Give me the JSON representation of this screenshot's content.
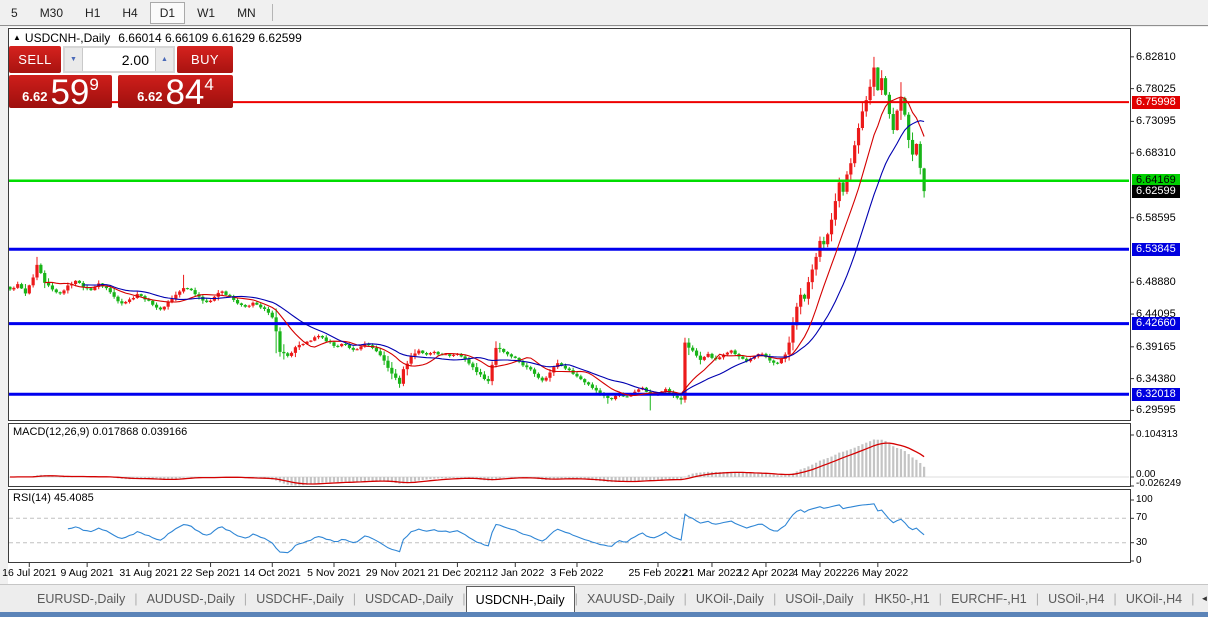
{
  "toolbar": {
    "timeframes": [
      "5",
      "M30",
      "H1",
      "H4",
      "D1",
      "W1",
      "MN"
    ],
    "active": "D1"
  },
  "chart": {
    "title_arrow": "▲",
    "symbol": "USDCNH-,Daily",
    "ohlc": "6.66014 6.66109 6.61629 6.62599",
    "trade_panel": {
      "sell_label": "SELL",
      "buy_label": "BUY",
      "volume": "2.00",
      "spinner_down_icon": "▼",
      "spinner_up_icon": "▲",
      "sell_price_prefix": "6.62",
      "sell_price_big": "59",
      "sell_price_sup": "9",
      "buy_price_prefix": "6.62",
      "buy_price_big": "84",
      "buy_price_sup": "4"
    }
  },
  "price_axis": {
    "ticks": [
      "6.82810",
      "6.78025",
      "6.73095",
      "6.68310",
      "6.58595",
      "6.48880",
      "6.44095",
      "6.39165",
      "6.34380",
      "6.29595"
    ],
    "line_labels": [
      {
        "value": "6.75998",
        "price": 6.75998,
        "bg": "#e00000",
        "fg": "#ffffff"
      },
      {
        "value": "6.64169",
        "price": 6.64169,
        "bg": "#00d000",
        "fg": "#000000"
      },
      {
        "value": "6.62599",
        "price": 6.62599,
        "bg": "#000000",
        "fg": "#ffffff"
      },
      {
        "value": "6.53845",
        "price": 6.53845,
        "bg": "#0000e0",
        "fg": "#ffffff"
      },
      {
        "value": "6.42660",
        "price": 6.4266,
        "bg": "#0000e0",
        "fg": "#ffffff"
      },
      {
        "value": "6.32018",
        "price": 6.32018,
        "bg": "#0000e0",
        "fg": "#ffffff"
      }
    ]
  },
  "macd": {
    "header": "MACD(12,26,9) 0.017868 0.039166",
    "axis": [
      "0.104313",
      "0.00",
      "-0.026249"
    ]
  },
  "rsi": {
    "header": "RSI(14) 45.4085",
    "axis": [
      "100",
      "70",
      "30",
      "0"
    ]
  },
  "date_axis": [
    {
      "i": 5,
      "label": "16 Jul 2021"
    },
    {
      "i": 20,
      "label": "9 Aug 2021"
    },
    {
      "i": 36,
      "label": "31 Aug 2021"
    },
    {
      "i": 52,
      "label": "22 Sep 2021"
    },
    {
      "i": 68,
      "label": "14 Oct 2021"
    },
    {
      "i": 84,
      "label": "5 Nov 2021"
    },
    {
      "i": 100,
      "label": "29 Nov 2021"
    },
    {
      "i": 116,
      "label": "21 Dec 2021"
    },
    {
      "i": 131,
      "label": "12 Jan 2022"
    },
    {
      "i": 147,
      "label": "3 Feb 2022"
    },
    {
      "i": 168,
      "label": "25 Feb 2022"
    },
    {
      "i": 182,
      "label": "21 Mar 2022"
    },
    {
      "i": 196,
      "label": "12 Apr 2022"
    },
    {
      "i": 210,
      "label": "4 May 2022"
    },
    {
      "i": 225,
      "label": "26 May 2022"
    }
  ],
  "tabs": {
    "items": [
      "EURUSD-,Daily",
      "AUDUSD-,Daily",
      "USDCHF-,Daily",
      "USDCAD-,Daily",
      "USDCNH-,Daily",
      "XAUUSD-,Daily",
      "UKOil-,Daily",
      "USOil-,Daily",
      "HK50-,H1",
      "EURCHF-,H1",
      "USOil-,H4",
      "UKOil-,H4"
    ],
    "active_index": 4,
    "separator": "|",
    "nav_left": "◄",
    "nav_right": "►"
  },
  "chart_data": {
    "type": "candlestick",
    "symbol": "USDCNH",
    "period": "Daily",
    "last_ohlc": {
      "open": 6.66014,
      "high": 6.66109,
      "low": 6.61629,
      "close": 6.62599
    },
    "price_range": [
      6.28,
      6.87
    ],
    "bars": 238,
    "up_color": "#ec1a1a",
    "down_color": "#18b418",
    "ma_fast_period": 10,
    "ma_slow_period": 20,
    "ma_fast_color": "#d40000",
    "ma_slow_color": "#0000b0",
    "macd_params": [
      12,
      26,
      9
    ],
    "macd_last": [
      0.017868,
      0.039166
    ],
    "macd_range": [
      -0.026249,
      0.104313
    ],
    "macd_bar_color": "#c4c4c4",
    "macd_signal_color": "#d40000",
    "rsi_period": 14,
    "rsi_last": 45.4085,
    "rsi_levels": [
      70,
      30
    ],
    "rsi_color": "#2f86d5",
    "hlines": [
      {
        "price": 6.75998,
        "color": "#ee0000",
        "width": 2
      },
      {
        "price": 6.64169,
        "color": "#00dd00",
        "width": 2.5
      },
      {
        "price": 6.53845,
        "color": "#0000ee",
        "width": 3
      },
      {
        "price": 6.4266,
        "color": "#0000ee",
        "width": 3
      },
      {
        "price": 6.32018,
        "color": "#0000ee",
        "width": 3
      }
    ],
    "close_anchors": [
      [
        0,
        6.478
      ],
      [
        2,
        6.486
      ],
      [
        4,
        6.472
      ],
      [
        6,
        6.496
      ],
      [
        7,
        6.515
      ],
      [
        9,
        6.488
      ],
      [
        11,
        6.478
      ],
      [
        13,
        6.472
      ],
      [
        15,
        6.484
      ],
      [
        17,
        6.491
      ],
      [
        19,
        6.481
      ],
      [
        21,
        6.477
      ],
      [
        23,
        6.487
      ],
      [
        25,
        6.48
      ],
      [
        27,
        6.467
      ],
      [
        29,
        6.457
      ],
      [
        31,
        6.463
      ],
      [
        33,
        6.471
      ],
      [
        35,
        6.463
      ],
      [
        37,
        6.455
      ],
      [
        39,
        6.448
      ],
      [
        41,
        6.459
      ],
      [
        43,
        6.47
      ],
      [
        45,
        6.48
      ],
      [
        47,
        6.477
      ],
      [
        49,
        6.467
      ],
      [
        51,
        6.459
      ],
      [
        53,
        6.467
      ],
      [
        55,
        6.475
      ],
      [
        57,
        6.468
      ],
      [
        59,
        6.457
      ],
      [
        61,
        6.452
      ],
      [
        63,
        6.458
      ],
      [
        65,
        6.451
      ],
      [
        67,
        6.443
      ],
      [
        68,
        6.436
      ],
      [
        69,
        6.415
      ],
      [
        70,
        6.384
      ],
      [
        72,
        6.378
      ],
      [
        74,
        6.391
      ],
      [
        76,
        6.396
      ],
      [
        78,
        6.401
      ],
      [
        80,
        6.408
      ],
      [
        82,
        6.4
      ],
      [
        84,
        6.393
      ],
      [
        86,
        6.396
      ],
      [
        88,
        6.39
      ],
      [
        90,
        6.388
      ],
      [
        92,
        6.396
      ],
      [
        94,
        6.39
      ],
      [
        96,
        6.379
      ],
      [
        98,
        6.36
      ],
      [
        100,
        6.345
      ],
      [
        101,
        6.336
      ],
      [
        102,
        6.358
      ],
      [
        104,
        6.378
      ],
      [
        106,
        6.386
      ],
      [
        108,
        6.38
      ],
      [
        110,
        6.384
      ],
      [
        112,
        6.38
      ],
      [
        114,
        6.378
      ],
      [
        116,
        6.381
      ],
      [
        118,
        6.373
      ],
      [
        120,
        6.361
      ],
      [
        122,
        6.35
      ],
      [
        124,
        6.34
      ],
      [
        126,
        6.39
      ],
      [
        128,
        6.384
      ],
      [
        130,
        6.377
      ],
      [
        132,
        6.369
      ],
      [
        134,
        6.361
      ],
      [
        136,
        6.351
      ],
      [
        138,
        6.341
      ],
      [
        140,
        6.353
      ],
      [
        142,
        6.367
      ],
      [
        144,
        6.359
      ],
      [
        146,
        6.351
      ],
      [
        148,
        6.343
      ],
      [
        150,
        6.335
      ],
      [
        152,
        6.326
      ],
      [
        154,
        6.318
      ],
      [
        156,
        6.313
      ],
      [
        158,
        6.321
      ],
      [
        160,
        6.317
      ],
      [
        162,
        6.324
      ],
      [
        164,
        6.33
      ],
      [
        166,
        6.321
      ],
      [
        168,
        6.322
      ],
      [
        170,
        6.328
      ],
      [
        172,
        6.318
      ],
      [
        174,
        6.312
      ],
      [
        175,
        6.398
      ],
      [
        177,
        6.386
      ],
      [
        179,
        6.372
      ],
      [
        181,
        6.381
      ],
      [
        183,
        6.373
      ],
      [
        185,
        6.38
      ],
      [
        187,
        6.386
      ],
      [
        189,
        6.377
      ],
      [
        191,
        6.37
      ],
      [
        193,
        6.377
      ],
      [
        195,
        6.381
      ],
      [
        197,
        6.371
      ],
      [
        199,
        6.367
      ],
      [
        201,
        6.38
      ],
      [
        202,
        6.398
      ],
      [
        203,
        6.424
      ],
      [
        204,
        6.452
      ],
      [
        205,
        6.47
      ],
      [
        206,
        6.464
      ],
      [
        207,
        6.489
      ],
      [
        208,
        6.508
      ],
      [
        209,
        6.527
      ],
      [
        210,
        6.551
      ],
      [
        211,
        6.546
      ],
      [
        212,
        6.561
      ],
      [
        213,
        6.583
      ],
      [
        214,
        6.611
      ],
      [
        215,
        6.639
      ],
      [
        216,
        6.625
      ],
      [
        217,
        6.651
      ],
      [
        218,
        6.668
      ],
      [
        219,
        6.695
      ],
      [
        220,
        6.721
      ],
      [
        221,
        6.746
      ],
      [
        222,
        6.763
      ],
      [
        223,
        6.783
      ],
      [
        224,
        6.812
      ],
      [
        225,
        6.778
      ],
      [
        226,
        6.796
      ],
      [
        227,
        6.771
      ],
      [
        228,
        6.742
      ],
      [
        229,
        6.718
      ],
      [
        230,
        6.747
      ],
      [
        231,
        6.766
      ],
      [
        232,
        6.741
      ],
      [
        233,
        6.703
      ],
      [
        234,
        6.681
      ],
      [
        235,
        6.697
      ],
      [
        236,
        6.661
      ],
      [
        237,
        6.62599
      ]
    ],
    "high_overrides": {
      "7": 6.527,
      "45": 6.5,
      "224": 6.8281,
      "226": 6.808,
      "231": 6.79
    },
    "low_overrides": {
      "69": 6.382,
      "101": 6.33,
      "155": 6.306,
      "166": 6.29595,
      "174": 6.305,
      "237": 6.61629
    }
  }
}
